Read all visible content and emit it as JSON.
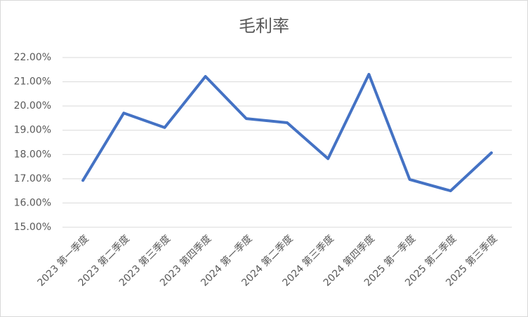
{
  "chart_data": {
    "type": "line",
    "title": "毛利率",
    "categories": [
      "2023 第一季度",
      "2023 第二季度",
      "2023 第三季度",
      "2023 第四季度",
      "2024 第一季度",
      "2024 第二季度",
      "2024 第三季度",
      "2024 第四季度",
      "2025 第一季度",
      "2025 第二季度",
      "2025 第三季度"
    ],
    "values": [
      16.93,
      19.71,
      19.11,
      21.22,
      19.48,
      19.31,
      17.83,
      21.31,
      16.97,
      16.5,
      18.07
    ],
    "color": "#4472c4",
    "ylim": [
      15,
      22
    ],
    "yticks": [
      {
        "value": 15,
        "label": "15.00%"
      },
      {
        "value": 16,
        "label": "16.00%"
      },
      {
        "value": 17,
        "label": "17.00%"
      },
      {
        "value": 18,
        "label": "18.00%"
      },
      {
        "value": 19,
        "label": "19.00%"
      },
      {
        "value": 20,
        "label": "20.00%"
      },
      {
        "value": 21,
        "label": "21.00%"
      },
      {
        "value": 22,
        "label": "22.00%"
      }
    ],
    "grid": true
  }
}
